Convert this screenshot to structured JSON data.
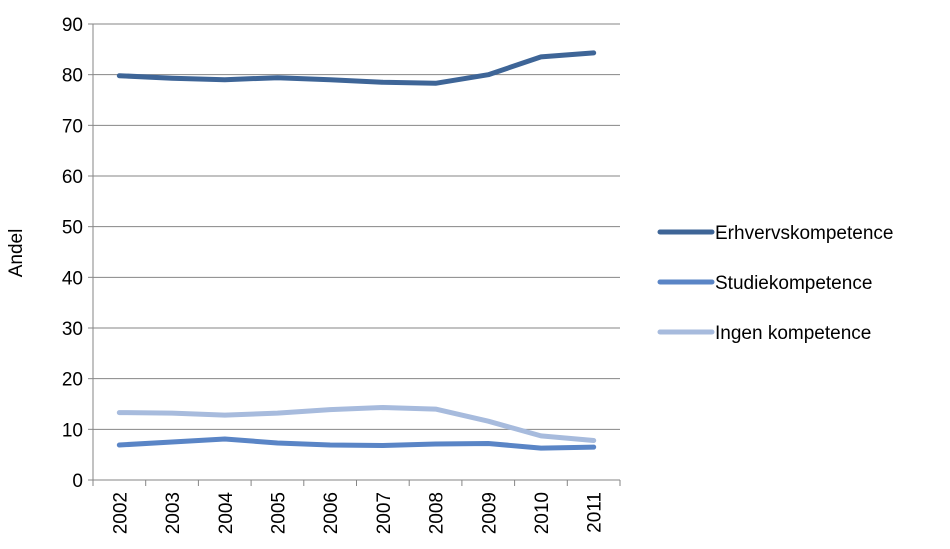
{
  "chart_data": {
    "type": "line",
    "title": "",
    "xlabel": "",
    "ylabel": "Andel",
    "categories": [
      "2002",
      "2003",
      "2004",
      "2005",
      "2006",
      "2007",
      "2008",
      "2009",
      "2010",
      "2011"
    ],
    "ylim": [
      0,
      90
    ],
    "yticks": [
      "0",
      "10",
      "20",
      "30",
      "40",
      "50",
      "60",
      "70",
      "80",
      "90"
    ],
    "grid": true,
    "legend_position": "right",
    "series": [
      {
        "name": "Erhvervskompetence",
        "color": "#3E6597",
        "values": [
          79.8,
          79.3,
          79.0,
          79.4,
          79.0,
          78.5,
          78.3,
          80.0,
          83.5,
          84.3
        ]
      },
      {
        "name": "Studiekompetence",
        "color": "#5A85C6",
        "values": [
          6.9,
          7.5,
          8.1,
          7.3,
          6.9,
          6.8,
          7.1,
          7.2,
          6.3,
          6.5
        ]
      },
      {
        "name": "Ingen kompetence",
        "color": "#A7BBDD",
        "values": [
          13.3,
          13.2,
          12.8,
          13.2,
          13.9,
          14.3,
          14.0,
          11.6,
          8.7,
          7.8
        ]
      }
    ]
  }
}
